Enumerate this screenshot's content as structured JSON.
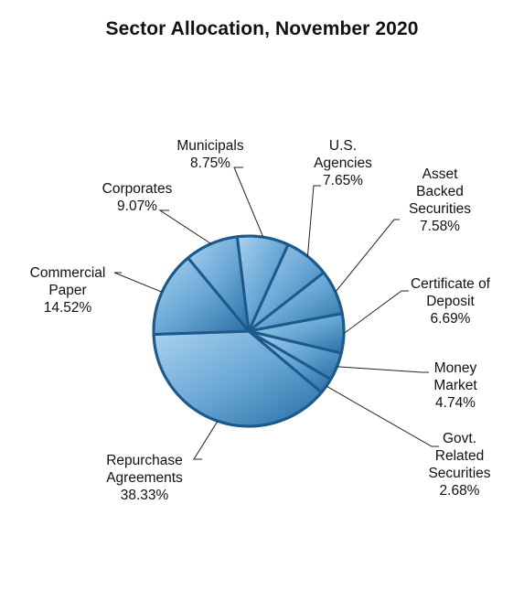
{
  "chart_data": {
    "type": "pie",
    "title": "Sector Allocation, November 2020",
    "slices": [
      {
        "name": "Municipals",
        "label_lines": [
          "Municipals",
          "8.75%"
        ],
        "value": 8.75
      },
      {
        "name": "U.S. Agencies",
        "label_lines": [
          "U.S.",
          "Agencies",
          "7.65%"
        ],
        "value": 7.65
      },
      {
        "name": "Asset Backed Securities",
        "label_lines": [
          "Asset",
          "Backed",
          "Securities",
          "7.58%"
        ],
        "value": 7.58
      },
      {
        "name": "Certificate of Deposit",
        "label_lines": [
          "Certificate of",
          "Deposit",
          "6.69%"
        ],
        "value": 6.69
      },
      {
        "name": "Money Market",
        "label_lines": [
          "Money",
          "Market",
          "4.74%"
        ],
        "value": 4.74
      },
      {
        "name": "Govt. Related Securities",
        "label_lines": [
          "Govt.",
          "Related",
          "Securities",
          "2.68%"
        ],
        "value": 2.68
      },
      {
        "name": "Repurchase Agreements",
        "label_lines": [
          "Repurchase",
          "Agreements",
          "38.33%"
        ],
        "value": 38.33
      },
      {
        "name": "Commercial Paper",
        "label_lines": [
          "Commercial",
          "Paper",
          "14.52%"
        ],
        "value": 14.52
      },
      {
        "name": "Corporates",
        "label_lines": [
          "Corporates",
          "9.07%"
        ],
        "value": 9.07
      }
    ],
    "colors": {
      "fill_light": "#8fc3e6",
      "fill_dark": "#2c6fa3",
      "stroke": "#1b5a8c"
    }
  }
}
